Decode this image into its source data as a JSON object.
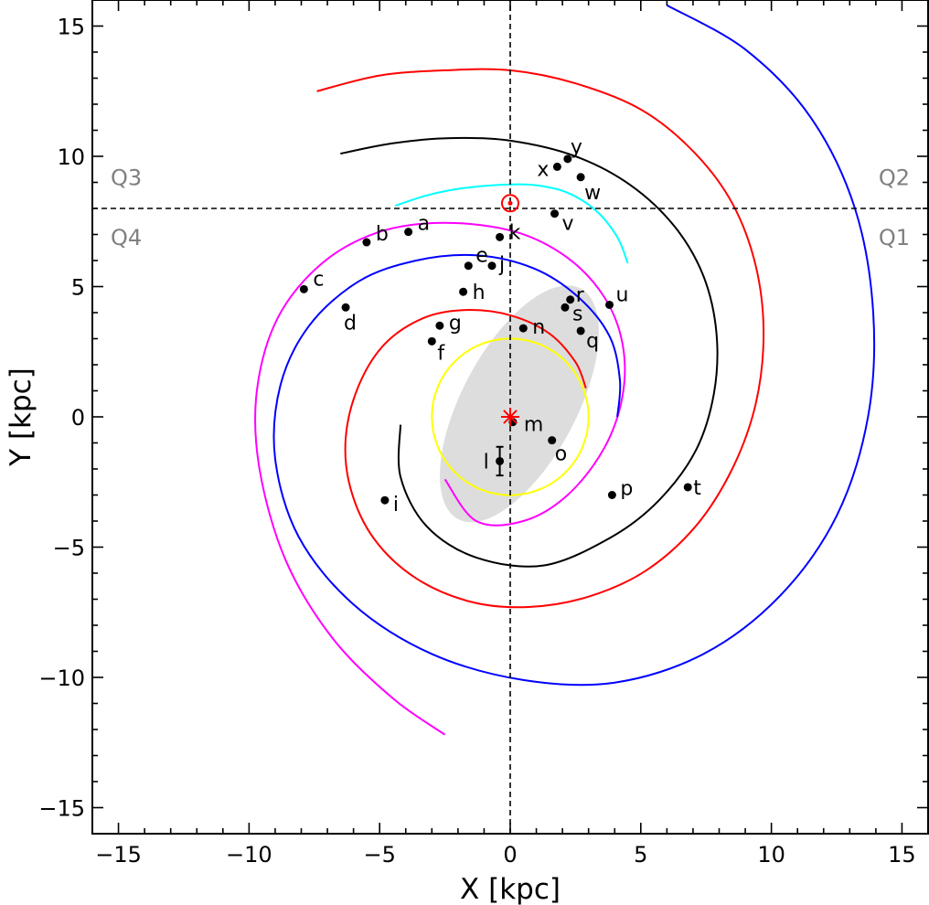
{
  "chart_data": {
    "type": "scatter",
    "xlabel": "X [kpc]",
    "ylabel": "Y [kpc]",
    "xlim": [
      -16,
      16
    ],
    "ylim": [
      -16,
      16
    ],
    "xticks": [
      -15,
      -10,
      -5,
      0,
      5,
      10,
      15
    ],
    "yticks": [
      -15,
      -10,
      -5,
      0,
      5,
      10,
      15
    ],
    "tick_labels": [
      "−15",
      "−10",
      "−5",
      "0",
      "5",
      "10",
      "15"
    ],
    "grid": false,
    "quadrants": [
      {
        "label": "Q3",
        "x": -15.3,
        "y": 8.9,
        "anchor": "start"
      },
      {
        "label": "Q4",
        "x": -15.3,
        "y": 6.6,
        "anchor": "start"
      },
      {
        "label": "Q2",
        "x": 15.3,
        "y": 8.9,
        "anchor": "end"
      },
      {
        "label": "Q1",
        "x": 15.3,
        "y": 6.6,
        "anchor": "end"
      }
    ],
    "reference_lines": {
      "sun_y": 8.0,
      "x": 0
    },
    "sun": {
      "x": 0,
      "y": 8.2,
      "color": "#ff0000"
    },
    "galactic_center": {
      "x": 0,
      "y": 0,
      "color": "#ff0000"
    },
    "bar": {
      "cx": 0.35,
      "cy": 0.5,
      "semi_major": 5.0,
      "semi_minor": 2.2,
      "angle_deg": 62,
      "color": "#dddddd"
    },
    "ring": {
      "cx": 0,
      "cy": 0,
      "r": 3.0,
      "color": "#ffff00"
    },
    "spiral_arms": [
      {
        "name": "cyan arm",
        "color": "#00ffff",
        "points": [
          [
            -4.4,
            8.1
          ],
          [
            -3.2,
            8.5
          ],
          [
            -2,
            8.75
          ],
          [
            -0.5,
            8.9
          ],
          [
            0.9,
            8.9
          ],
          [
            2.2,
            8.6
          ],
          [
            3.3,
            7.9
          ],
          [
            4.1,
            6.9
          ],
          [
            4.5,
            5.9
          ]
        ]
      },
      {
        "name": "magenta arm",
        "color": "#ff00ff",
        "points": [
          [
            -2.5,
            -12.2
          ],
          [
            -4.5,
            -10.8
          ],
          [
            -6.8,
            -8.5
          ],
          [
            -8.6,
            -5.5
          ],
          [
            -9.6,
            -2
          ],
          [
            -9.7,
            1
          ],
          [
            -8.9,
            3.8
          ],
          [
            -7.2,
            5.9
          ],
          [
            -5,
            7.1
          ],
          [
            -2.5,
            7.45
          ],
          [
            0.2,
            7.1
          ],
          [
            2.2,
            6.1
          ],
          [
            3.6,
            4.6
          ],
          [
            4.3,
            2.8
          ],
          [
            4.3,
            0.8
          ],
          [
            3.6,
            -1.2
          ],
          [
            2.2,
            -3
          ],
          [
            0.5,
            -4
          ],
          [
            -1.3,
            -4
          ],
          [
            -2.5,
            -2.4
          ]
        ]
      },
      {
        "name": "blue outer arm",
        "color": "#0000ff",
        "points": [
          [
            6,
            15.8
          ],
          [
            9,
            14.1
          ],
          [
            11.5,
            11.5
          ],
          [
            13.2,
            8
          ],
          [
            13.9,
            4
          ],
          [
            13.7,
            0
          ],
          [
            12.5,
            -3.8
          ],
          [
            10.3,
            -6.9
          ],
          [
            7.4,
            -9.1
          ],
          [
            4,
            -10.2
          ],
          [
            0.5,
            -10.1
          ],
          [
            -3,
            -9.1
          ],
          [
            -6,
            -7.2
          ],
          [
            -8.1,
            -4.6
          ],
          [
            -9,
            -1.6
          ],
          [
            -8.8,
            1.2
          ],
          [
            -7.7,
            3.5
          ],
          [
            -5.8,
            5.2
          ],
          [
            -3.6,
            6
          ],
          [
            -1.3,
            6.2
          ],
          [
            0.9,
            5.7
          ],
          [
            2.6,
            4.6
          ],
          [
            3.8,
            3.1
          ],
          [
            4.2,
            1.4
          ],
          [
            4.1,
            0
          ]
        ]
      },
      {
        "name": "red outer arm",
        "color": "#ff0000",
        "points": [
          [
            -7.4,
            12.5
          ],
          [
            -5,
            13.1
          ],
          [
            -2.5,
            13.3
          ],
          [
            0,
            13.3
          ],
          [
            2.5,
            12.8
          ],
          [
            5,
            11.8
          ],
          [
            7,
            10.2
          ],
          [
            8.5,
            8.2
          ],
          [
            9.4,
            5.8
          ],
          [
            9.7,
            3.2
          ],
          [
            9.4,
            0.5
          ],
          [
            8.5,
            -2
          ],
          [
            7.1,
            -4.2
          ],
          [
            5.2,
            -5.9
          ],
          [
            3,
            -6.9
          ],
          [
            0.7,
            -7.3
          ],
          [
            -1.5,
            -7.1
          ],
          [
            -3.6,
            -6.2
          ],
          [
            -5.2,
            -4.7
          ],
          [
            -6.1,
            -2.8
          ],
          [
            -6.3,
            -0.8
          ],
          [
            -5.8,
            1.2
          ],
          [
            -4.8,
            2.8
          ],
          [
            -3.3,
            3.8
          ],
          [
            -1.7,
            4.1
          ],
          [
            0,
            3.9
          ],
          [
            1.5,
            3.2
          ],
          [
            2.5,
            2.1
          ],
          [
            2.9,
            1.1
          ]
        ]
      },
      {
        "name": "black arm",
        "color": "#000000",
        "points": [
          [
            -6.5,
            10.1
          ],
          [
            -4.5,
            10.5
          ],
          [
            -2.3,
            10.7
          ],
          [
            0,
            10.6
          ],
          [
            2.5,
            10
          ],
          [
            4.6,
            8.9
          ],
          [
            6.3,
            7.3
          ],
          [
            7.4,
            5.4
          ],
          [
            7.9,
            3.2
          ],
          [
            7.8,
            0.9
          ],
          [
            7.1,
            -1.3
          ],
          [
            5.7,
            -3.2
          ],
          [
            3.9,
            -4.6
          ],
          [
            1.3,
            -5.7
          ],
          [
            -1.3,
            -5.4
          ],
          [
            -3.2,
            -4.2
          ],
          [
            -4.2,
            -2.3
          ],
          [
            -4.2,
            -0.3
          ]
        ]
      }
    ],
    "points": [
      {
        "label": "a",
        "x": -3.9,
        "y": 7.1,
        "dx": 10,
        "dy": -2
      },
      {
        "label": "b",
        "x": -5.5,
        "y": 6.7,
        "dx": 10,
        "dy": -2
      },
      {
        "label": "c",
        "x": -7.9,
        "y": 4.9,
        "dx": 10,
        "dy": -4
      },
      {
        "label": "d",
        "x": -6.3,
        "y": 4.2,
        "dx": -2,
        "dy": 24
      },
      {
        "label": "e",
        "x": -1.6,
        "y": 5.8,
        "dx": 8,
        "dy": -4
      },
      {
        "label": "f",
        "x": -3.0,
        "y": 2.9,
        "dx": 6,
        "dy": 20
      },
      {
        "label": "g",
        "x": -2.7,
        "y": 3.5,
        "dx": 10,
        "dy": 4
      },
      {
        "label": "h",
        "x": -1.8,
        "y": 4.8,
        "dx": 10,
        "dy": 8
      },
      {
        "label": "i",
        "x": -4.8,
        "y": -3.2,
        "dx": 9,
        "dy": 12
      },
      {
        "label": "j",
        "x": -0.7,
        "y": 5.8,
        "dx": 8,
        "dy": 6
      },
      {
        "label": "k",
        "x": -0.4,
        "y": 6.9,
        "dx": 10,
        "dy": 2
      },
      {
        "label": "l",
        "x": -0.4,
        "y": -1.7,
        "dx": -18,
        "dy": 8,
        "err": 0.55
      },
      {
        "label": "m",
        "x": 0.1,
        "y": -0.2,
        "dx": 12,
        "dy": 10
      },
      {
        "label": "n",
        "x": 0.5,
        "y": 3.4,
        "dx": 10,
        "dy": 6
      },
      {
        "label": "o",
        "x": 1.6,
        "y": -0.9,
        "dx": 3,
        "dy": 22
      },
      {
        "label": "p",
        "x": 3.9,
        "y": -3.0,
        "dx": 9,
        "dy": 0
      },
      {
        "label": "q",
        "x": 2.7,
        "y": 3.3,
        "dx": 6,
        "dy": 18
      },
      {
        "label": "r",
        "x": 2.3,
        "y": 4.5,
        "dx": 6,
        "dy": 2
      },
      {
        "label": "s",
        "x": 2.1,
        "y": 4.2,
        "dx": 8,
        "dy": 14
      },
      {
        "label": "t",
        "x": 6.8,
        "y": -2.7,
        "dx": 6,
        "dy": 8
      },
      {
        "label": "u",
        "x": 3.8,
        "y": 4.3,
        "dx": 7,
        "dy": -4
      },
      {
        "label": "v",
        "x": 1.7,
        "y": 7.8,
        "dx": 8,
        "dy": 18
      },
      {
        "label": "w",
        "x": 2.7,
        "y": 9.2,
        "dx": 4,
        "dy": 24
      },
      {
        "label": "x",
        "x": 1.8,
        "y": 9.6,
        "dx": -22,
        "dy": 10
      },
      {
        "label": "y",
        "x": 2.2,
        "y": 9.9,
        "dx": 3,
        "dy": -6
      }
    ]
  }
}
